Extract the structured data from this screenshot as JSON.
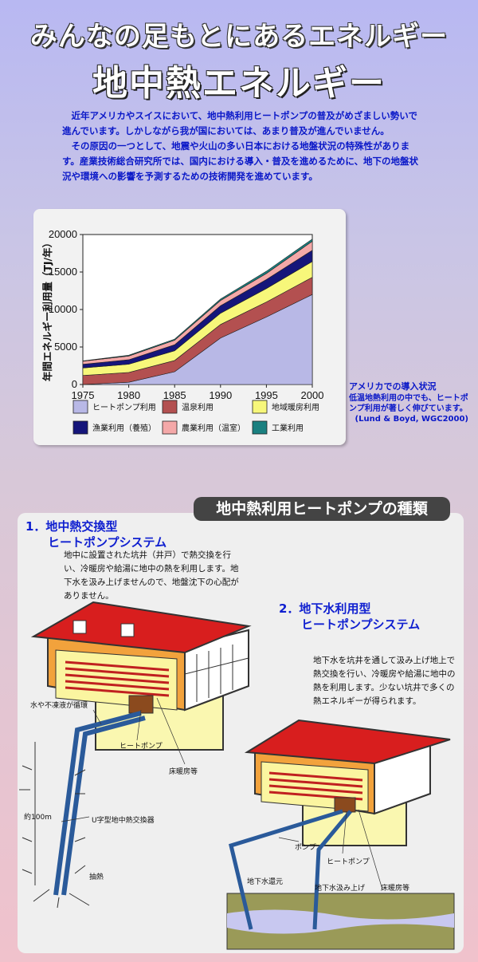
{
  "header": {
    "subtitle": "みんなの足もとにあるエネルギー",
    "title": "地中熱エネルギー"
  },
  "intro": {
    "para1": "近年アメリカやスイスにおいて、地中熱利用ヒートポンプの普及がめざましい勢いで進んでいます。しかしながら我が国においては、あまり普及が進んでいません。",
    "para2": "その原因の一つとして、地震や火山の多い日本における地盤状況の特殊性があります。産業技術総合研究所では、国内における導入・普及を進めるために、地下の地盤状況や環境への影響を予測するための技術開発を進めています。"
  },
  "chart_data": {
    "type": "area",
    "stacked": true,
    "x": [
      1975,
      1980,
      1985,
      1990,
      1995,
      2000
    ],
    "xlabel": "",
    "ylabel": "年間エネルギー利用量（TJ/年）",
    "ylim": [
      0,
      20000
    ],
    "xticks": [
      "1975",
      "1980",
      "1985",
      "1990",
      "1995",
      "2000"
    ],
    "yticks": [
      "0",
      "5000",
      "10000",
      "15000",
      "20000"
    ],
    "grid": false,
    "legend_position": "bottom",
    "series": [
      {
        "name": "ヒートポンプ利用",
        "color": "#b8b8e6",
        "values": [
          0,
          300,
          1700,
          6200,
          9000,
          12000
        ]
      },
      {
        "name": "温泉利用",
        "color": "#b35050",
        "values": [
          1200,
          1300,
          1500,
          1800,
          2000,
          2300
        ]
      },
      {
        "name": "地域暖房利用",
        "color": "#f7f77a",
        "values": [
          1000,
          1100,
          1300,
          1500,
          1800,
          2100
        ]
      },
      {
        "name": "漁業利用（養殖）",
        "color": "#15157a",
        "values": [
          500,
          600,
          800,
          1000,
          1200,
          1500
        ]
      },
      {
        "name": "農業利用（温室）",
        "color": "#f4a8a8",
        "values": [
          400,
          500,
          600,
          700,
          800,
          1200
        ]
      },
      {
        "name": "工業利用",
        "color": "#1a8080",
        "values": [
          50,
          100,
          150,
          200,
          300,
          300
        ]
      }
    ]
  },
  "chart_note": {
    "title": "アメリカでの導入状況",
    "body": "低温地熱利用の中でも、ヒートポンプ利用が著しく伸びています。",
    "source": "(Lund & Boyd, WGC2000)"
  },
  "types": {
    "title": "地中熱利用ヒートポンプの種類",
    "type1": {
      "heading1": "1．地中熱交換型",
      "heading2": "ヒートポンプシステム",
      "text": "地中に設置された坑井（井戸）で熱交換を行い、冷暖房や給湯に地中の熱を利用します。地下水を汲み上げませんので、地盤沈下の心配がありません。"
    },
    "type2": {
      "heading1": "2．地下水利用型",
      "heading2": "ヒートポンプシステム",
      "text": "地下水を坑井を通して汲み上げ地上で熱交換を行い、冷暖房や給湯に地中の熱を利用します。少ない坑井で多くの熱エネルギーが得られます。"
    }
  },
  "diagram1": {
    "fluid": "水や不凍液が循環",
    "heat_pump": "ヒートポンプ",
    "floor_heating": "床暖房等",
    "depth": "約100m",
    "u_tube": "U字型地中熱交換器",
    "extract": "抽熱"
  },
  "diagram2": {
    "pump": "ポンプ",
    "heat_pump": "ヒートポンプ",
    "return_well": "地下水還元",
    "pump_up": "地下水汲み上げ",
    "floor_heating": "床暖房等"
  }
}
